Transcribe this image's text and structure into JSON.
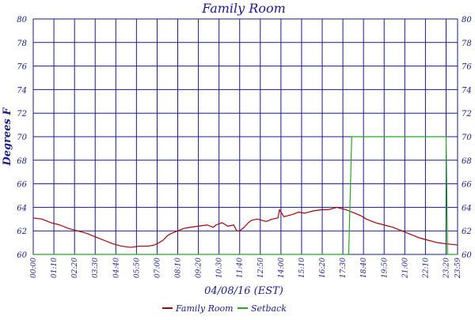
{
  "chart_data": {
    "type": "line",
    "title": "Family Room",
    "xlabel": "04/08/16 (EST)",
    "ylabel": "Degrees F",
    "ylim": [
      60,
      80
    ],
    "y_ticks": [
      60,
      62,
      64,
      66,
      68,
      70,
      72,
      74,
      76,
      78,
      80
    ],
    "x_tick_labels": [
      "00:00",
      "01:10",
      "02:20",
      "03:30",
      "04:40",
      "05:50",
      "07:00",
      "08:10",
      "09:20",
      "10:30",
      "11:40",
      "12:50",
      "14:00",
      "15:10",
      "16:20",
      "17:30",
      "18:40",
      "19:50",
      "21:00",
      "22:10",
      "23:20",
      "23:59"
    ],
    "x_tick_minutes": [
      0,
      70,
      140,
      210,
      280,
      350,
      420,
      490,
      560,
      630,
      700,
      770,
      840,
      910,
      980,
      1050,
      1120,
      1190,
      1260,
      1330,
      1400,
      1439
    ],
    "xlim_minutes": [
      0,
      1439
    ],
    "grid": true,
    "legend_position": "bottom",
    "series": [
      {
        "name": "Family Room",
        "color": "#aa0000",
        "points": [
          [
            0,
            63.1
          ],
          [
            30,
            63.0
          ],
          [
            60,
            62.7
          ],
          [
            90,
            62.5
          ],
          [
            120,
            62.2
          ],
          [
            150,
            62.0
          ],
          [
            180,
            61.8
          ],
          [
            210,
            61.5
          ],
          [
            240,
            61.2
          ],
          [
            270,
            60.9
          ],
          [
            300,
            60.7
          ],
          [
            330,
            60.6
          ],
          [
            360,
            60.7
          ],
          [
            390,
            60.7
          ],
          [
            410,
            60.8
          ],
          [
            420,
            60.9
          ],
          [
            440,
            61.2
          ],
          [
            455,
            61.6
          ],
          [
            470,
            61.8
          ],
          [
            490,
            62.0
          ],
          [
            510,
            62.2
          ],
          [
            530,
            62.3
          ],
          [
            560,
            62.4
          ],
          [
            590,
            62.5
          ],
          [
            610,
            62.3
          ],
          [
            620,
            62.5
          ],
          [
            640,
            62.7
          ],
          [
            660,
            62.4
          ],
          [
            680,
            62.5
          ],
          [
            690,
            62.0
          ],
          [
            700,
            62.0
          ],
          [
            715,
            62.3
          ],
          [
            730,
            62.7
          ],
          [
            740,
            62.9
          ],
          [
            760,
            63.0
          ],
          [
            790,
            62.8
          ],
          [
            810,
            63.0
          ],
          [
            830,
            63.1
          ],
          [
            835,
            63.8
          ],
          [
            850,
            63.2
          ],
          [
            880,
            63.4
          ],
          [
            900,
            63.6
          ],
          [
            920,
            63.5
          ],
          [
            950,
            63.7
          ],
          [
            980,
            63.8
          ],
          [
            1000,
            63.8
          ],
          [
            1030,
            64.0
          ],
          [
            1060,
            63.8
          ],
          [
            1090,
            63.5
          ],
          [
            1110,
            63.3
          ],
          [
            1130,
            63.0
          ],
          [
            1160,
            62.7
          ],
          [
            1190,
            62.5
          ],
          [
            1220,
            62.3
          ],
          [
            1250,
            62.0
          ],
          [
            1280,
            61.7
          ],
          [
            1310,
            61.4
          ],
          [
            1340,
            61.2
          ],
          [
            1370,
            61.0
          ],
          [
            1400,
            60.9
          ],
          [
            1439,
            60.8
          ]
        ]
      },
      {
        "name": "Setback",
        "color": "#22aa22",
        "points": [
          [
            0,
            60
          ],
          [
            1070,
            60
          ],
          [
            1070,
            60.3
          ],
          [
            1080,
            70
          ],
          [
            1400,
            70
          ],
          [
            1405,
            60.3
          ],
          [
            1405,
            60
          ],
          [
            1439,
            60
          ]
        ]
      }
    ]
  }
}
